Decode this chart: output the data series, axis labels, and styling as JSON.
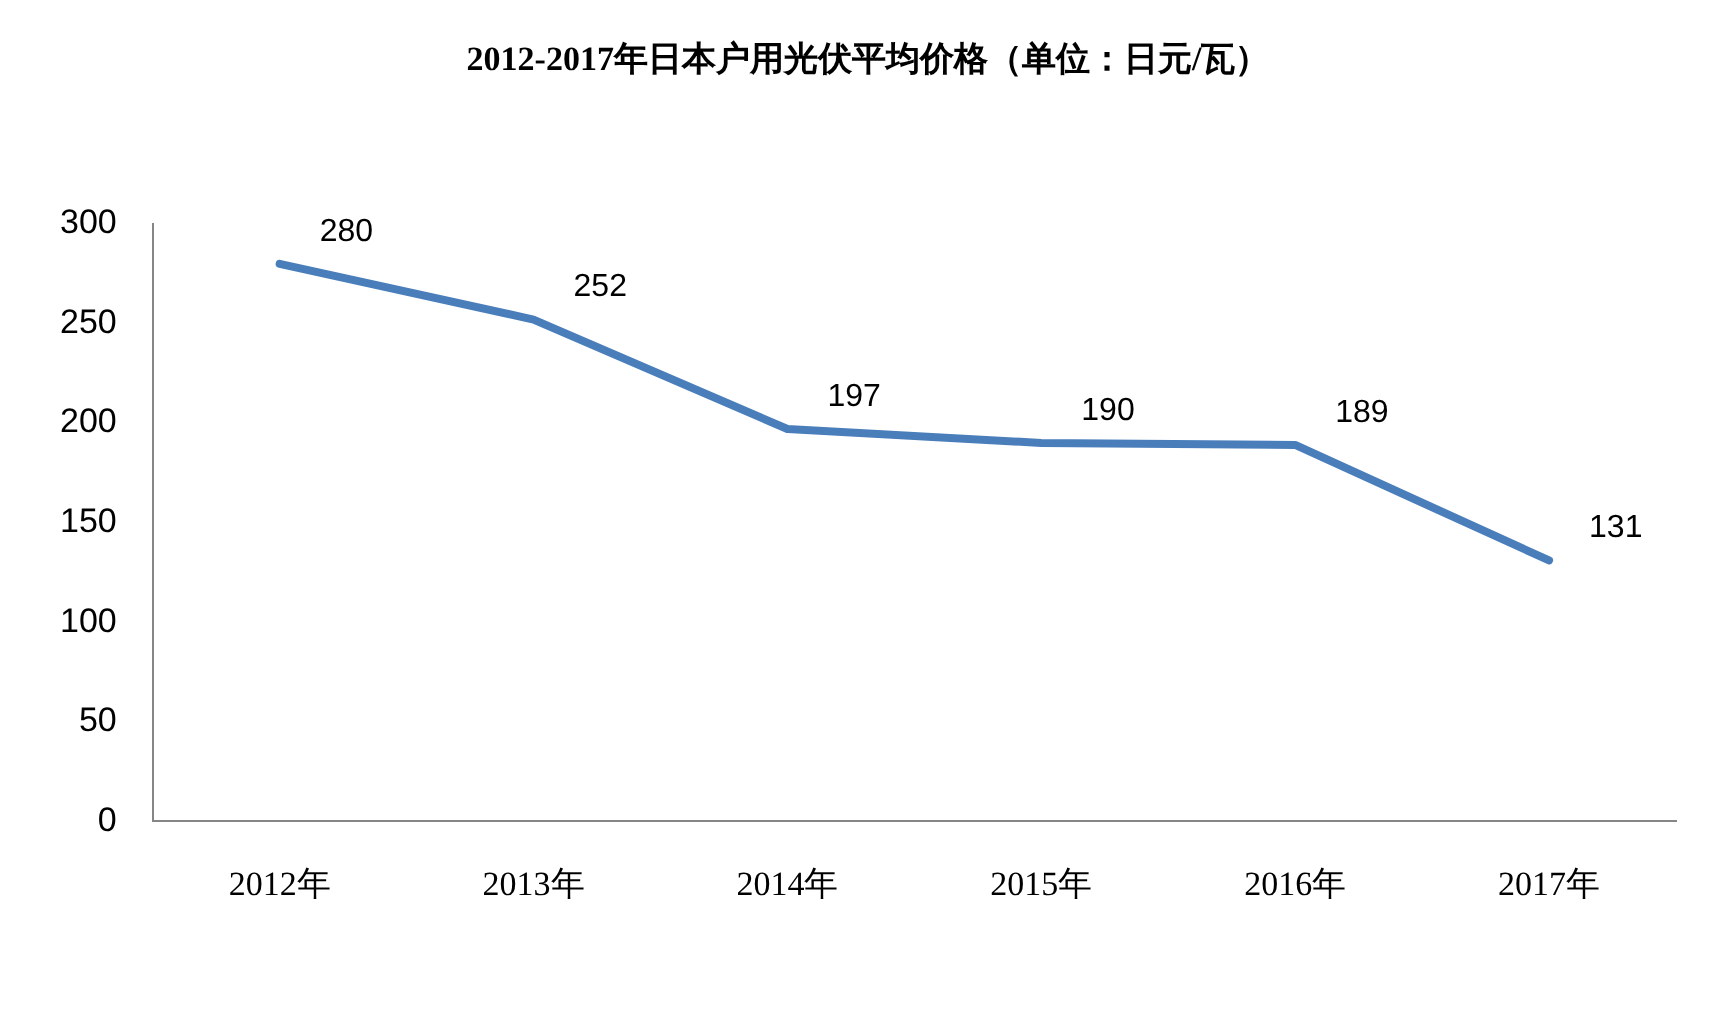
{
  "chart_data": {
    "type": "line",
    "title": "2012-2017年日本户用光伏平均价格（单位：日元/瓦）",
    "categories": [
      "2012年",
      "2013年",
      "2014年",
      "2015年",
      "2016年",
      "2017年"
    ],
    "series": [
      {
        "color": "#4a7ebb",
        "values": [
          280,
          252,
          197,
          190,
          189,
          131
        ]
      }
    ],
    "ylim": [
      0,
      300
    ],
    "yticks": [
      0,
      50,
      100,
      150,
      200,
      250,
      300
    ],
    "grid": false,
    "legend": false,
    "marker": "none",
    "line_style": "solid",
    "data_labels": true
  }
}
